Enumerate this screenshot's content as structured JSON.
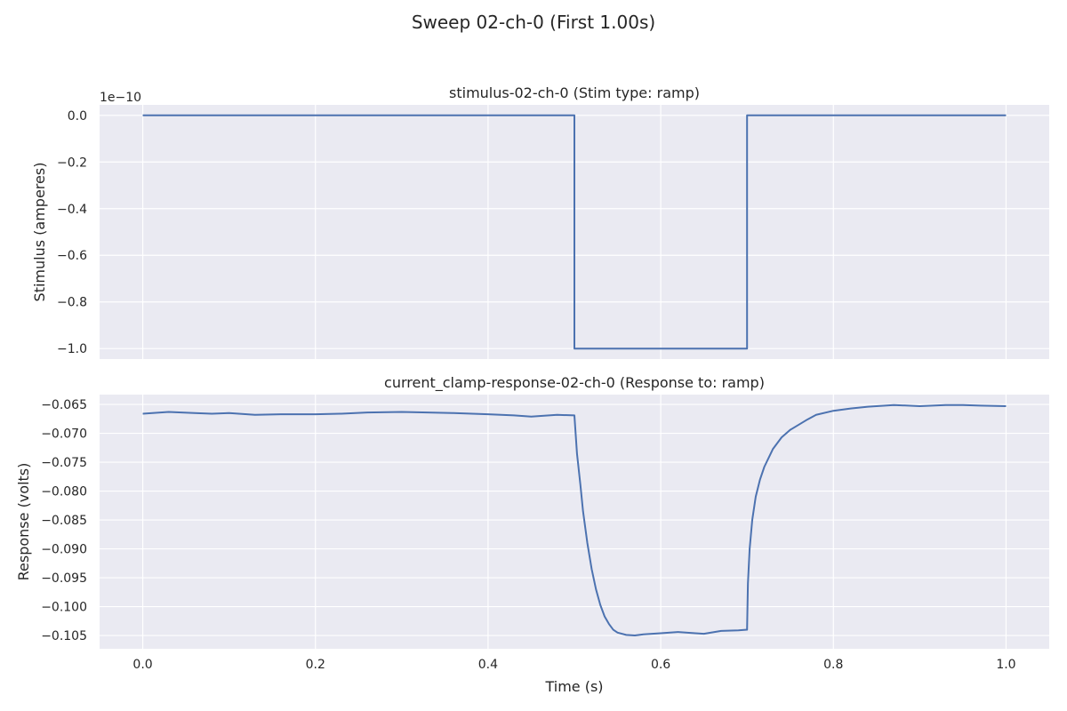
{
  "figure": {
    "title": "Sweep 02-ch-0 (First 1.00s)",
    "background": "#ffffff",
    "axes_background": "#eaeaf2",
    "grid_color": "#ffffff",
    "line_color": "#4c72b0"
  },
  "chart_data": [
    {
      "type": "line",
      "title": "stimulus-02-ch-0 (Stim type: ramp)",
      "xlabel": "",
      "ylabel": "Stimulus (amperes)",
      "offset_label": "1e−10",
      "xlim": [
        -0.05,
        1.05
      ],
      "ylim": [
        -1.045,
        0.045
      ],
      "x_ticks": [
        0.0,
        0.2,
        0.4,
        0.6,
        0.8,
        1.0
      ],
      "x_tick_labels_visible": false,
      "y_ticks": [
        0.0,
        -0.2,
        -0.4,
        -0.6,
        -0.8,
        -1.0
      ],
      "y_tick_labels": [
        "0.0",
        "−0.2",
        "−0.4",
        "−0.6",
        "−0.8",
        "−1.0"
      ],
      "grid": true,
      "series": [
        {
          "x": [
            0.0,
            0.5,
            0.5,
            0.7,
            0.7,
            1.0
          ],
          "y": [
            0.0,
            0.0,
            -1.0,
            -1.0,
            0.0,
            0.0
          ]
        }
      ]
    },
    {
      "type": "line",
      "title": "current_clamp-response-02-ch-0 (Response to: ramp)",
      "xlabel": "Time (s)",
      "ylabel": "Response (volts)",
      "xlim": [
        -0.05,
        1.05
      ],
      "ylim": [
        -0.1073,
        -0.0633
      ],
      "x_ticks": [
        0.0,
        0.2,
        0.4,
        0.6,
        0.8,
        1.0
      ],
      "x_tick_labels": [
        "0.0",
        "0.2",
        "0.4",
        "0.6",
        "0.8",
        "1.0"
      ],
      "y_ticks": [
        -0.065,
        -0.07,
        -0.075,
        -0.08,
        -0.085,
        -0.09,
        -0.095,
        -0.1,
        -0.105
      ],
      "y_tick_labels": [
        "−0.065",
        "−0.070",
        "−0.075",
        "−0.080",
        "−0.085",
        "−0.090",
        "−0.095",
        "−0.100",
        "−0.105"
      ],
      "grid": true,
      "series": [
        {
          "x": [
            0.0,
            0.03,
            0.06,
            0.08,
            0.1,
            0.13,
            0.16,
            0.2,
            0.23,
            0.26,
            0.3,
            0.33,
            0.36,
            0.4,
            0.43,
            0.45,
            0.48,
            0.5,
            0.503,
            0.507,
            0.51,
            0.515,
            0.52,
            0.525,
            0.53,
            0.535,
            0.54,
            0.545,
            0.55,
            0.56,
            0.57,
            0.58,
            0.6,
            0.62,
            0.64,
            0.65,
            0.67,
            0.69,
            0.7,
            0.701,
            0.703,
            0.706,
            0.71,
            0.715,
            0.72,
            0.73,
            0.74,
            0.75,
            0.76,
            0.77,
            0.78,
            0.8,
            0.82,
            0.84,
            0.87,
            0.9,
            0.93,
            0.95,
            0.97,
            1.0
          ],
          "y": [
            -0.0666,
            -0.0663,
            -0.0665,
            -0.0666,
            -0.0665,
            -0.0668,
            -0.0667,
            -0.0667,
            -0.0666,
            -0.0664,
            -0.0663,
            -0.0664,
            -0.0665,
            -0.0667,
            -0.0669,
            -0.0671,
            -0.0668,
            -0.0669,
            -0.0735,
            -0.079,
            -0.0835,
            -0.089,
            -0.0935,
            -0.097,
            -0.0997,
            -0.1017,
            -0.103,
            -0.104,
            -0.1045,
            -0.1049,
            -0.105,
            -0.1048,
            -0.1046,
            -0.1044,
            -0.1046,
            -0.1047,
            -0.1042,
            -0.1041,
            -0.104,
            -0.096,
            -0.09,
            -0.085,
            -0.081,
            -0.078,
            -0.0758,
            -0.0727,
            -0.0707,
            -0.0694,
            -0.0685,
            -0.0676,
            -0.0668,
            -0.0661,
            -0.0657,
            -0.0654,
            -0.0651,
            -0.0653,
            -0.0651,
            -0.0651,
            -0.0652,
            -0.0653
          ]
        }
      ]
    }
  ]
}
